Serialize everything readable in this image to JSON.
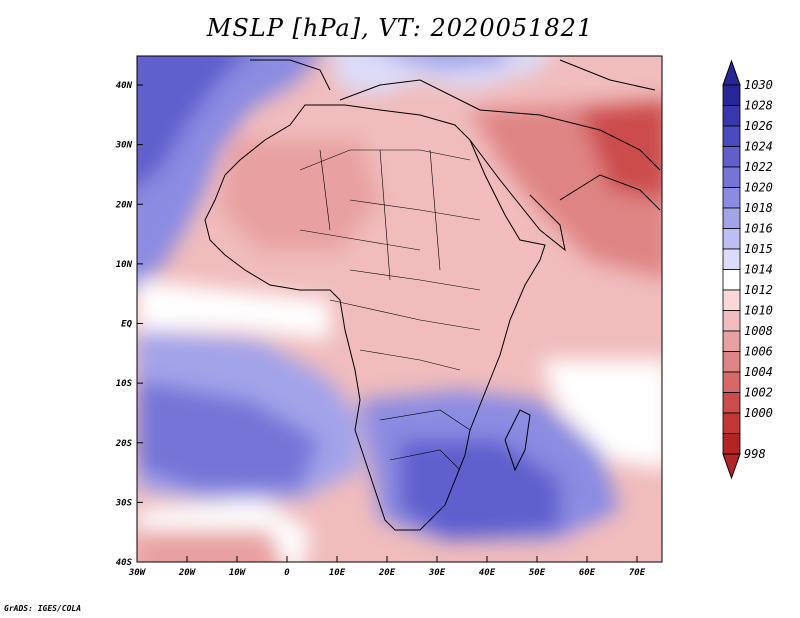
{
  "title": "MSLP [hPa], VT: 2020051821",
  "credit": "GrADS: IGES/COLA",
  "map": {
    "lat_labels": [
      "40N",
      "30N",
      "20N",
      "10N",
      "EQ",
      "10S",
      "20S",
      "30S",
      "40S"
    ],
    "lon_labels": [
      "30W",
      "20W",
      "10W",
      "0",
      "10E",
      "20E",
      "30E",
      "40E",
      "50E",
      "60E",
      "70E"
    ]
  },
  "colorbar": {
    "labels": [
      "1030",
      "1028",
      "1026",
      "1024",
      "1022",
      "1020",
      "1018",
      "1016",
      "1015",
      "1014",
      "1012",
      "1010",
      "1008",
      "1006",
      "1004",
      "1002",
      "1000",
      "998"
    ],
    "colors": [
      "#262696",
      "#3838ae",
      "#4a4ac0",
      "#5f5fce",
      "#7575d8",
      "#8b8be2",
      "#a3a3ea",
      "#bebef2",
      "#dcdcf8",
      "#ffffff",
      "#f8d8d8",
      "#f0bcbc",
      "#e8a0a0",
      "#df8484",
      "#d66868",
      "#cc4c4c",
      "#c23636",
      "#b52424"
    ]
  }
}
